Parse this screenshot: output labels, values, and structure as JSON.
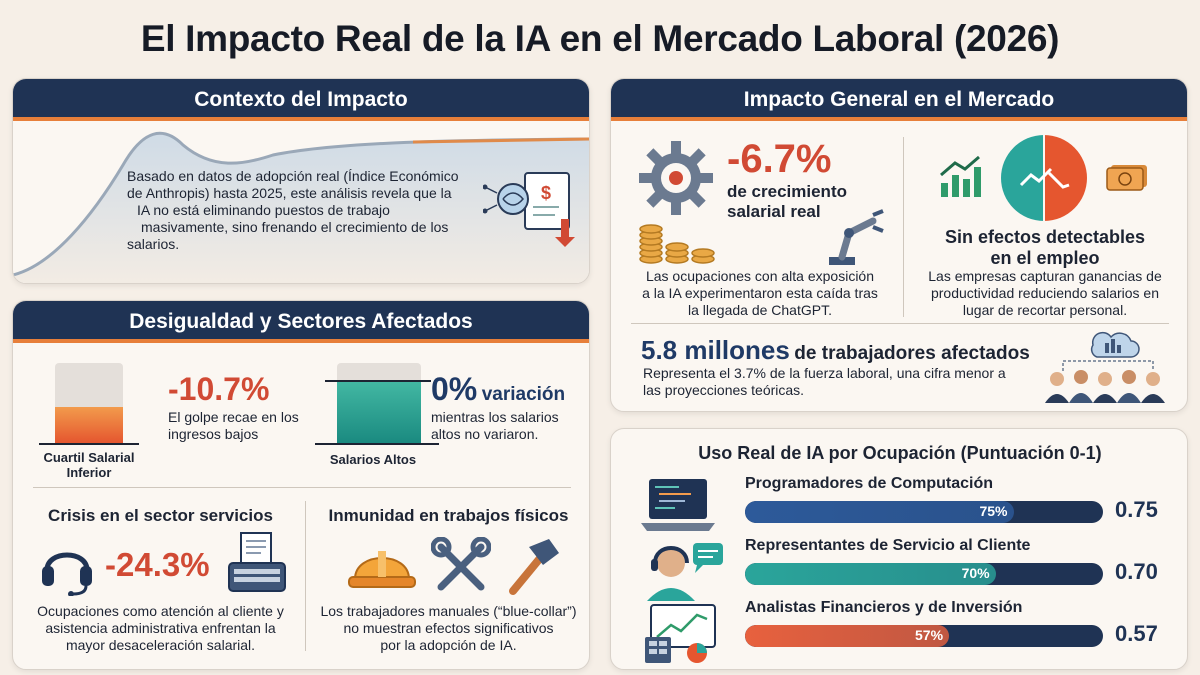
{
  "title": "El Impacto Real de la IA en el Mercado Laboral (2026)",
  "context": {
    "heading": "Contexto del Impacto",
    "line1": "Basado en datos de adopción real (Índice Económico",
    "line2": "de Anthropis) hasta 2025, este análisis revela que la",
    "line3": "IA no está eliminando puestos de trabajo",
    "line4": "masivamente, sino frenando el crecimiento de los",
    "line5": "salarios."
  },
  "inequality": {
    "heading": "Desigualdad y Sectores Afectados",
    "low_quartile_label_1": "Cuartil Salarial",
    "low_quartile_label_2": "Inferior",
    "low_value": "-10.7%",
    "low_desc_1": "El golpe recae en los",
    "low_desc_2": "ingresos bajos",
    "low_fill": 0.45,
    "high_label": "Salarios Altos",
    "high_value": "0%",
    "high_value_suffix": "variación",
    "high_desc_1": "mientras los salarios",
    "high_desc_2": "altos no variaron.",
    "high_fill": 0.78,
    "services_title": "Crisis en el sector servicios",
    "services_value": "-24.3%",
    "services_desc_1": "Ocupaciones como atención al cliente y",
    "services_desc_2": "asistencia administrativa enfrentan la",
    "services_desc_3": "mayor desaceleración salarial.",
    "physical_title": "Inmunidad en trabajos físicos",
    "physical_desc_1": "Los trabajadores manuales (“blue-collar”)",
    "physical_desc_2": "no muestran efectos significativos",
    "physical_desc_3": "por la adopción de IA."
  },
  "market": {
    "heading": "Impacto General en el Mercado",
    "wage_value": "-6.7%",
    "wage_label_1": "de crecimiento",
    "wage_label_2": "salarial real",
    "wage_desc_1": "Las ocupaciones con alta exposición",
    "wage_desc_2": "a la IA experimentaron esta caída tras",
    "wage_desc_3": "la llegada de ChatGPT.",
    "employment_title_1": "Sin efectos detectables",
    "employment_title_2": "en el empleo",
    "employment_desc_1": "Las empresas capturan ganancias de",
    "employment_desc_2": "productividad reduciendo salarios en",
    "employment_desc_3": "lugar de recortar personal.",
    "workers_value": "5.8 millones",
    "workers_label": "de trabajadores afectados",
    "workers_desc_1": "Representa el 3.7% de la fuerza laboral, una cifra menor a",
    "workers_desc_2": "las proyecciones teóricas."
  },
  "usage": {
    "heading": "Uso Real de IA por Ocupación (Puntuación 0-1)",
    "items": [
      {
        "label": "Programadores de Computación",
        "pct": "75%",
        "value": "0.75",
        "score": 0.75,
        "color": "#2d5a9a"
      },
      {
        "label": "Representantes de Servicio al Cliente",
        "pct": "70%",
        "value": "0.70",
        "score": 0.7,
        "color": "#2aa59b"
      },
      {
        "label": "Analistas Financieros y de Inversión",
        "pct": "57%",
        "value": "0.57",
        "score": 0.57,
        "color": "#e8613e"
      }
    ]
  },
  "icons": {
    "brain_doc": "ai-brain-document-icon",
    "gear": "gear-target-icon",
    "coins": "coins-icon",
    "robot_arm": "robot-arm-icon",
    "chart_up": "chart-up-icon",
    "pie": "pie-chart-icon",
    "money": "money-bill-icon",
    "people": "people-group-icon",
    "headset": "headset-icon",
    "typewriter": "typewriter-icon",
    "helmet": "hard-hat-icon",
    "wrenches": "wrenches-icon",
    "hammer": "hammer-icon",
    "laptop": "laptop-code-icon",
    "agent": "support-agent-icon",
    "finance": "finance-dashboard-icon"
  }
}
